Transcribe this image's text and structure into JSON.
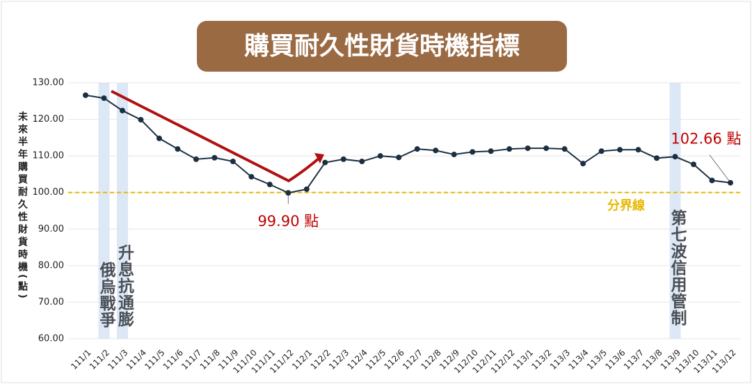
{
  "chart_data": {
    "type": "line",
    "title": "購買耐久性財貨時機指標",
    "y_label": "未來半年購買耐久性財貨時機(點)",
    "categories": [
      "111/1",
      "111/2",
      "111/3",
      "111/4",
      "111/5",
      "111/6",
      "111/7",
      "111/8",
      "111/9",
      "111/10",
      "111/11",
      "111/12",
      "112/1",
      "112/2",
      "112/3",
      "112/4",
      "112/5",
      "112/6",
      "112/7",
      "112/8",
      "112/9",
      "112/10",
      "112/11",
      "112/12",
      "113/1",
      "113/2",
      "113/3",
      "113/4",
      "113/5",
      "113/6",
      "113/7",
      "113/8",
      "113/9",
      "113/10",
      "113/11",
      "113/12"
    ],
    "series": [
      {
        "name": "購買耐久性財貨時機指標",
        "color": "#1c2f40",
        "values": [
          126.6,
          125.8,
          122.4,
          119.9,
          114.8,
          111.9,
          109.1,
          109.5,
          108.5,
          104.3,
          102.2,
          99.9,
          100.9,
          108.2,
          109.1,
          108.5,
          110.0,
          109.6,
          111.9,
          111.5,
          110.4,
          111.1,
          111.3,
          111.9,
          112.1,
          112.1,
          111.9,
          107.9,
          111.3,
          111.7,
          111.7,
          109.4,
          109.8,
          107.7,
          103.3,
          102.66
        ],
        "value_labels": [
          null,
          null,
          null,
          null,
          null,
          null,
          null,
          null,
          null,
          null,
          null,
          "99.90 點",
          null,
          null,
          null,
          null,
          null,
          null,
          null,
          null,
          null,
          null,
          null,
          null,
          null,
          null,
          null,
          null,
          null,
          null,
          null,
          null,
          null,
          null,
          null,
          "102.66 點"
        ],
        "value_label_color": "#c00000"
      }
    ],
    "ylim": [
      60,
      130
    ],
    "yticks": [
      {
        "value": 60,
        "label": "60.00"
      },
      {
        "value": 70,
        "label": "70.00"
      },
      {
        "value": 80,
        "label": "80.00"
      },
      {
        "value": 90,
        "label": "90.00"
      },
      {
        "value": 100,
        "label": "100.00"
      },
      {
        "value": 110,
        "label": "110.00"
      },
      {
        "value": 120,
        "label": "120.00"
      },
      {
        "value": 130,
        "label": "130.00"
      }
    ],
    "grid": true,
    "reference_line": {
      "value": 100,
      "label": "分界線",
      "color": "#e8b800"
    },
    "bands": [
      {
        "category": "111/2",
        "label": "俄烏戰爭"
      },
      {
        "category": "111/3",
        "label": "升息抗通膨"
      },
      {
        "category": "113/9",
        "label": "第七波信用管制"
      }
    ],
    "band_color": "#dce8f5"
  }
}
